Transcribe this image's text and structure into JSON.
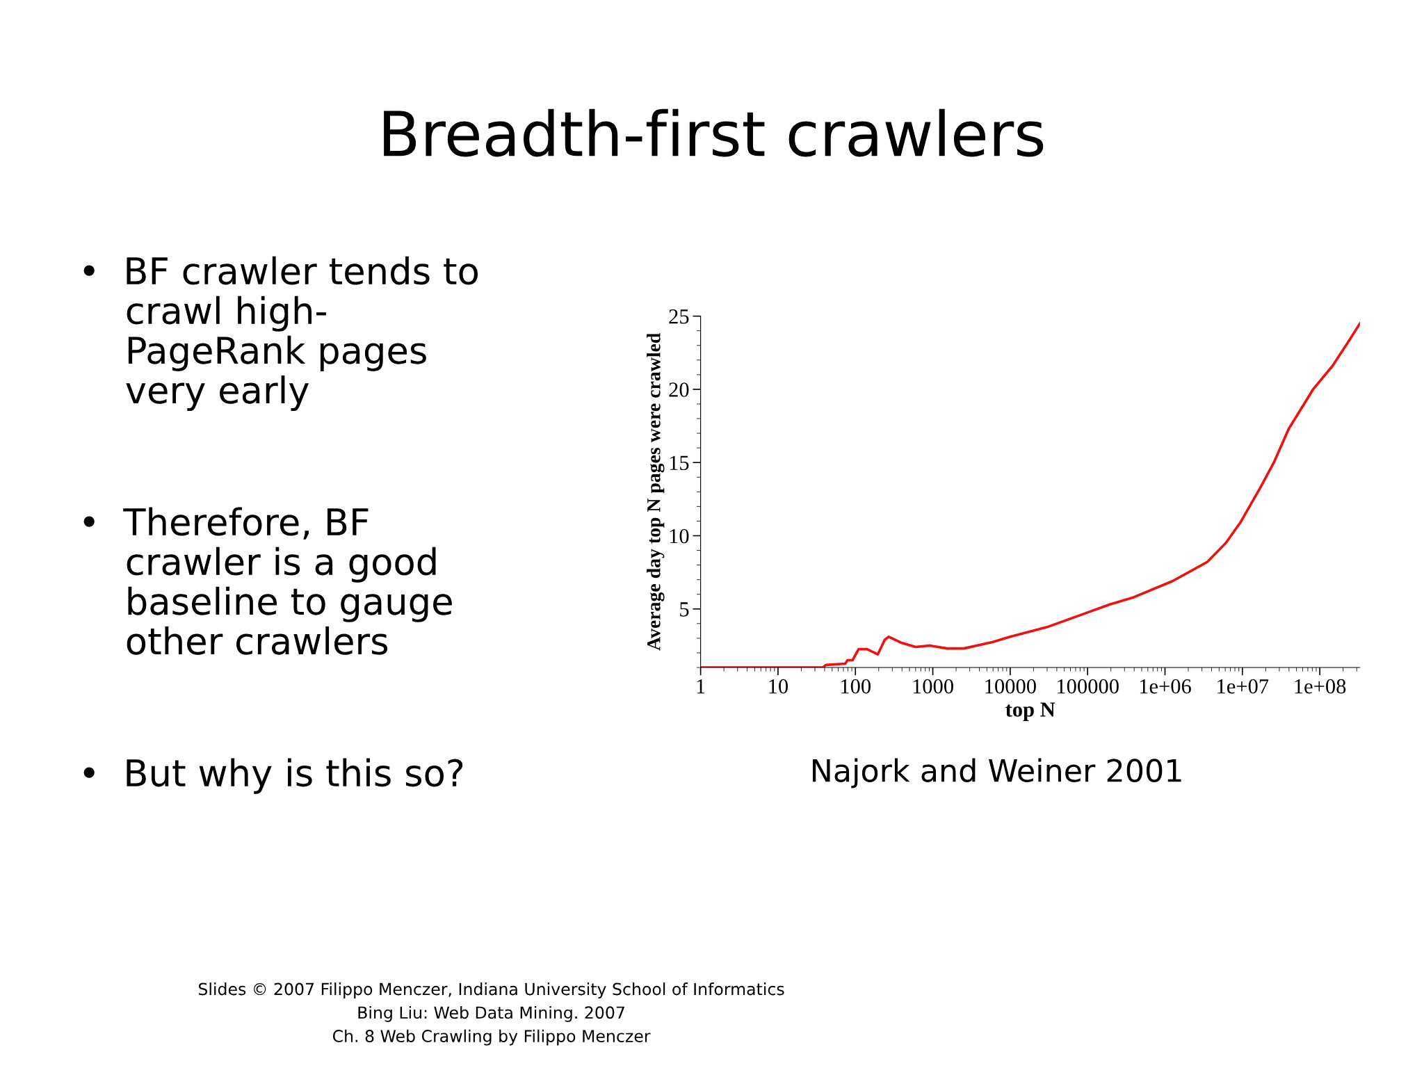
{
  "chart_data": {
    "type": "line",
    "title": "Breadth-first crawlers",
    "xlabel": "top N",
    "ylabel": "Average day top N pages were crawled",
    "log": "x",
    "grid": false,
    "legend": false,
    "marker": "none",
    "line_style": "solid",
    "xlim": [
      1,
      330000000
    ],
    "ylim": [
      1,
      25
    ],
    "xticks": [
      1,
      10,
      100,
      1000,
      10000,
      100000,
      {
        "value": 1000000,
        "label": "1e+06"
      },
      {
        "value": 10000000,
        "label": "1e+07"
      },
      {
        "value": 100000000,
        "label": "1e+08"
      }
    ],
    "yticks": [
      5,
      10,
      15,
      20,
      25
    ],
    "series": [
      {
        "color": "#ee1111",
        "x": [
          1,
          38,
          41.6,
          74,
          79,
          92,
          110,
          141,
          195,
          240,
          270,
          388,
          600,
          920,
          1520,
          2520,
          6000,
          10000,
          29500,
          93000,
          191000,
          395000,
          1250000,
          3500000,
          6100000,
          9400000,
          16700000,
          25500000,
          39700000,
          82000000,
          146000000,
          224000000,
          330000000
        ],
        "values": [
          1.0,
          1.0,
          1.17,
          1.26,
          1.5,
          1.5,
          2.25,
          2.25,
          1.9,
          2.9,
          3.1,
          2.7,
          2.4,
          2.5,
          2.3,
          2.3,
          2.75,
          3.1,
          3.75,
          4.7,
          5.3,
          5.8,
          6.9,
          8.2,
          9.5,
          10.9,
          13.2,
          15.0,
          17.3,
          20.0,
          21.6,
          23.1,
          24.5
        ]
      }
    ],
    "annotations": [
      "•  BF crawler tends to\n    crawl high-\n    PageRank pages\n    very early",
      "•  Therefore, BF\n    crawler is a good\n    baseline to gauge\n    other crawlers",
      "•  But why is this so?",
      "Najork and Weiner 2001",
      "Slides © 2007 Filippo Menczer, Indiana University School of Informatics",
      "Bing Liu: Web Data Mining. 2007",
      "Ch. 8 Web Crawling by Filippo Menczer"
    ]
  }
}
